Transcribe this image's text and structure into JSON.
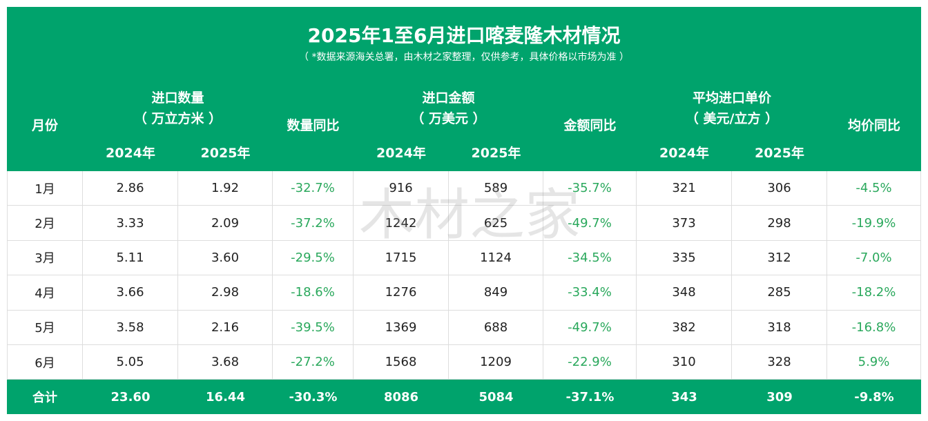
{
  "title": "2025年1至6月进口喀麦隆木材情况",
  "subtitle": "（ *数据来源海关总署，由木材之家整理，仅供参考，具体价格以市场为准 ）",
  "header": {
    "month": "月份",
    "groups": [
      {
        "label": "进口数量",
        "unit": "（ 万立方米 ）",
        "years": [
          "2024年",
          "2025年"
        ],
        "yoy": "数量同比"
      },
      {
        "label": "进口金额",
        "unit": "（ 万美元 ）",
        "years": [
          "2024年",
          "2025年"
        ],
        "yoy": "金额同比"
      },
      {
        "label": "平均进口单价",
        "unit": "（ 美元/立方 ）",
        "years": [
          "2024年",
          "2025年"
        ],
        "yoy": "均价同比"
      }
    ]
  },
  "rows": [
    [
      "1月",
      "2.86",
      "1.92",
      "-32.7%",
      "916",
      "589",
      "-35.7%",
      "321",
      "306",
      "-4.5%"
    ],
    [
      "2月",
      "3.33",
      "2.09",
      "-37.2%",
      "1242",
      "625",
      "-49.7%",
      "373",
      "298",
      "-19.9%"
    ],
    [
      "3月",
      "5.11",
      "3.60",
      "-29.5%",
      "1715",
      "1124",
      "-34.5%",
      "335",
      "312",
      "-7.0%"
    ],
    [
      "4月",
      "3.66",
      "2.98",
      "-18.6%",
      "1276",
      "849",
      "-33.4%",
      "348",
      "285",
      "-18.2%"
    ],
    [
      "5月",
      "3.58",
      "2.16",
      "-39.5%",
      "1369",
      "688",
      "-49.7%",
      "382",
      "318",
      "-16.8%"
    ],
    [
      "6月",
      "5.05",
      "3.68",
      "-27.2%",
      "1568",
      "1209",
      "-22.9%",
      "310",
      "328",
      "5.9%"
    ]
  ],
  "total": [
    "合计",
    "23.60",
    "16.44",
    "-30.3%",
    "8086",
    "5084",
    "-37.1%",
    "343",
    "309",
    "-9.8%"
  ],
  "watermark": "木材之家"
}
